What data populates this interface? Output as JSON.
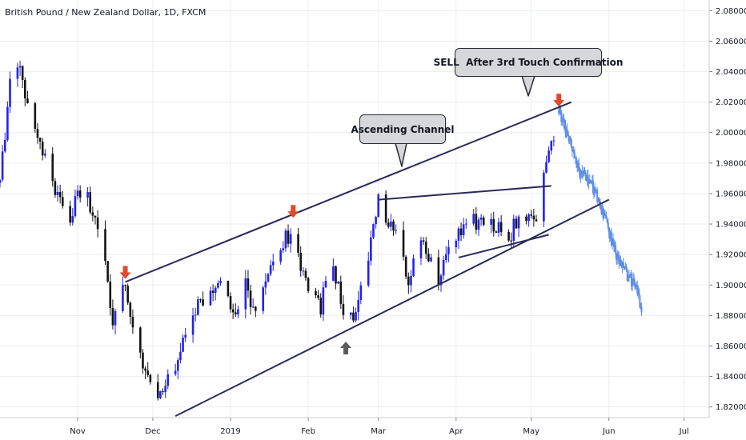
{
  "chart_title": "British Pound / New Zealand Dollar, 1D, FXCM",
  "colors": {
    "bull": "#2222ee",
    "bear": "#131313",
    "projection": "#5e8fe6",
    "trendline": "#2a2a5a",
    "marker_red": "#e04a2d",
    "marker_gray": "#5b5b5b",
    "grid": "#eceef2",
    "axis_border": "#c9ccd3"
  },
  "annotations": {
    "callout_channel": "Ascending Channel",
    "callout_sell": "SELL  After 3rd Touch Confirmation"
  },
  "chart_data": {
    "type": "candlestick",
    "title": "British Pound / New Zealand Dollar, 1D, FXCM",
    "timeframe": "1D",
    "x_ticks": [
      "Nov",
      "Dec",
      "2019",
      "Feb",
      "Mar",
      "Apr",
      "May",
      "Jun",
      "Jul"
    ],
    "y_ticks": [
      "1.82000",
      "1.84000",
      "1.86000",
      "1.88000",
      "1.90000",
      "1.92000",
      "1.94000",
      "1.96000",
      "1.98000",
      "2.00000",
      "2.02000",
      "2.04000",
      "2.06000",
      "2.08000"
    ],
    "ylim": [
      1.813,
      2.087
    ],
    "grid": true,
    "price_path": [
      [
        "2018-10-01",
        1.967
      ],
      [
        "2018-10-05",
        2.035
      ],
      [
        "2018-10-09",
        2.042
      ],
      [
        "2018-10-12",
        2.02
      ],
      [
        "2018-10-16",
        2.0
      ],
      [
        "2018-10-20",
        1.975
      ],
      [
        "2018-10-25",
        1.958
      ],
      [
        "2018-10-29",
        1.942
      ],
      [
        "2018-11-02",
        1.963
      ],
      [
        "2018-11-05",
        1.955
      ],
      [
        "2018-11-09",
        1.935
      ],
      [
        "2018-11-13",
        1.905
      ],
      [
        "2018-11-15",
        1.868
      ],
      [
        "2018-11-17",
        1.888
      ],
      [
        "2018-11-19",
        1.9
      ],
      [
        "2018-11-21",
        1.89
      ],
      [
        "2018-11-23",
        1.872
      ],
      [
        "2018-11-28",
        1.845
      ],
      [
        "2018-12-03",
        1.82
      ],
      [
        "2018-12-08",
        1.842
      ],
      [
        "2018-12-13",
        1.86
      ],
      [
        "2018-12-18",
        1.885
      ],
      [
        "2018-12-23",
        1.895
      ],
      [
        "2018-12-28",
        1.9
      ],
      [
        "2019-01-03",
        1.885
      ],
      [
        "2019-01-07",
        1.9
      ],
      [
        "2019-01-10",
        1.88
      ],
      [
        "2019-01-14",
        1.895
      ],
      [
        "2019-01-18",
        1.92
      ],
      [
        "2019-01-22",
        1.93
      ],
      [
        "2019-01-26",
        1.935
      ],
      [
        "2019-01-30",
        1.908
      ],
      [
        "2019-02-03",
        1.895
      ],
      [
        "2019-02-06",
        1.885
      ],
      [
        "2019-02-09",
        1.912
      ],
      [
        "2019-02-13",
        1.905
      ],
      [
        "2019-02-16",
        1.868
      ],
      [
        "2019-02-20",
        1.885
      ],
      [
        "2019-02-24",
        1.91
      ],
      [
        "2019-02-27",
        1.935
      ],
      [
        "2019-03-01",
        1.955
      ],
      [
        "2019-03-05",
        1.94
      ],
      [
        "2019-03-09",
        1.93
      ],
      [
        "2019-03-13",
        1.9
      ],
      [
        "2019-03-17",
        1.935
      ],
      [
        "2019-03-21",
        1.915
      ],
      [
        "2019-03-25",
        1.905
      ],
      [
        "2019-03-29",
        1.925
      ],
      [
        "2019-04-02",
        1.935
      ],
      [
        "2019-04-06",
        1.943
      ],
      [
        "2019-04-10",
        1.94
      ],
      [
        "2019-04-14",
        1.937
      ],
      [
        "2019-04-18",
        1.94
      ],
      [
        "2019-04-22",
        1.93
      ],
      [
        "2019-04-26",
        1.945
      ],
      [
        "2019-04-30",
        1.948
      ],
      [
        "2019-05-03",
        1.94
      ],
      [
        "2019-05-06",
        1.97
      ],
      [
        "2019-05-10",
        2.0
      ],
      [
        "2019-05-12",
        2.015
      ]
    ],
    "projection_path": [
      [
        "2019-05-12",
        2.015
      ],
      [
        "2019-05-16",
        1.995
      ],
      [
        "2019-05-20",
        1.975
      ],
      [
        "2019-05-24",
        1.97
      ],
      [
        "2019-05-28",
        1.955
      ],
      [
        "2019-06-01",
        1.935
      ],
      [
        "2019-06-05",
        1.915
      ],
      [
        "2019-06-09",
        1.905
      ],
      [
        "2019-06-12",
        1.898
      ],
      [
        "2019-06-14",
        1.885
      ]
    ],
    "channel_upper": [
      [
        "2018-11-20",
        1.902
      ],
      [
        "2019-05-17",
        2.02
      ]
    ],
    "channel_lower": [
      [
        "2018-12-10",
        1.814
      ],
      [
        "2019-06-01",
        1.956
      ]
    ],
    "triangle_upper": [
      [
        "2019-03-01",
        1.956
      ],
      [
        "2019-05-09",
        1.965
      ]
    ],
    "triangle_lower": [
      [
        "2019-04-02",
        1.918
      ],
      [
        "2019-05-08",
        1.933
      ]
    ],
    "markers": [
      {
        "type": "down-arrow",
        "color": "red",
        "at": [
          "2018-11-20",
          1.902
        ]
      },
      {
        "type": "down-arrow",
        "color": "red",
        "at": [
          "2019-01-26",
          1.942
        ]
      },
      {
        "type": "up-arrow",
        "color": "gray",
        "at": [
          "2019-02-16",
          1.866
        ]
      },
      {
        "type": "down-arrow",
        "color": "red",
        "at": [
          "2019-05-12",
          2.015
        ]
      }
    ]
  }
}
